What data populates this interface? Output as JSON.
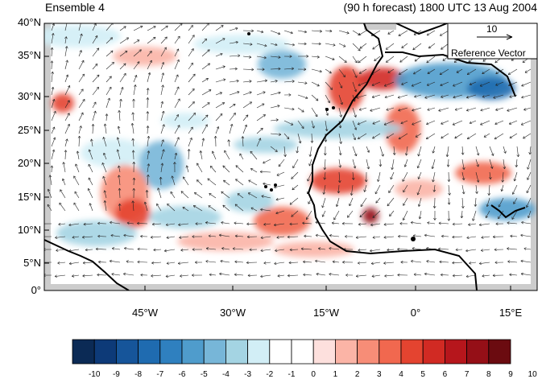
{
  "header": {
    "left_title": "Ensemble 4",
    "right_title": "(90 h forecast) 1800 UTC 13 Aug 2004"
  },
  "axes": {
    "lat_labels": [
      "40°N",
      "35°N",
      "30°N",
      "25°N",
      "20°N",
      "15°N",
      "10°N",
      "5°N",
      "0°"
    ],
    "lon_labels": [
      "45°W",
      "30°W",
      "15°W",
      "0°",
      "15°E"
    ]
  },
  "reference_vector": {
    "magnitude": "10",
    "label": "Reference Vector"
  },
  "colorbar": {
    "labels": [
      "-10",
      "-9",
      "-8",
      "-7",
      "-6",
      "-5",
      "-4",
      "-3",
      "-2",
      "-1",
      "0",
      "1",
      "2",
      "3",
      "4",
      "5",
      "6",
      "7",
      "8",
      "9",
      "10"
    ],
    "colors": [
      "#0b2a55",
      "#0d3a78",
      "#16559a",
      "#1f6bb0",
      "#2f80bf",
      "#4f9ccc",
      "#77b6d8",
      "#a4d4e3",
      "#d2eef6",
      "#ffffff",
      "#ffffff",
      "#fde0dd",
      "#fbb4a6",
      "#f78d77",
      "#f1684f",
      "#e44430",
      "#d12a23",
      "#b6161c",
      "#950f17",
      "#6b0b10"
    ]
  },
  "map_data": {
    "lon_range": [
      -57,
      20
    ],
    "lat_range": [
      0,
      40
    ],
    "field": "perturbation shading with wind vectors"
  }
}
